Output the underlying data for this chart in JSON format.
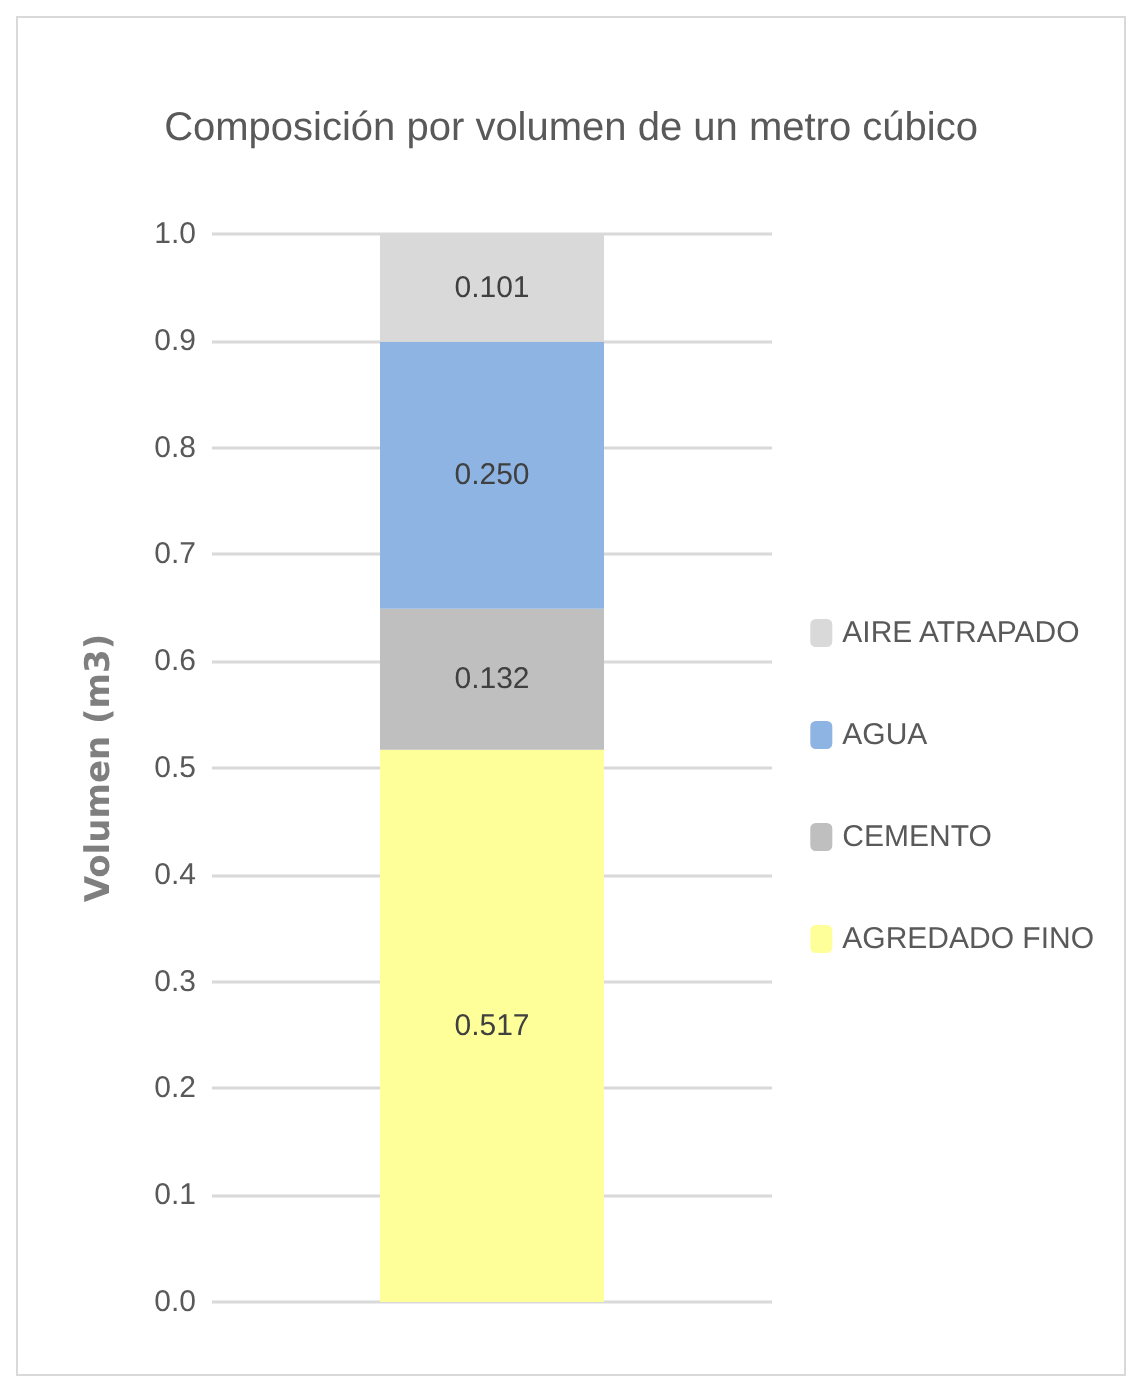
{
  "chart_data": {
    "type": "bar",
    "title": "Composición por volumen de un metro cúbico",
    "ylabel": "Volumen (m3)",
    "categories": [
      null
    ],
    "stacked": true,
    "series": [
      {
        "name": "AGREDADO FINO",
        "color": "#ffff99",
        "values": [
          0.517
        ],
        "value_labels": [
          "0.517"
        ]
      },
      {
        "name": "CEMENTO",
        "color": "#bfbfbf",
        "values": [
          0.132
        ],
        "value_labels": [
          "0.132"
        ]
      },
      {
        "name": "AGUA",
        "color": "#8eb4e3",
        "values": [
          0.25
        ],
        "value_labels": [
          "0.250"
        ]
      },
      {
        "name": "AIRE ATRAPADO",
        "color": "#d9d9d9",
        "values": [
          0.101
        ],
        "value_labels": [
          "0.101"
        ]
      }
    ],
    "ylim": [
      0,
      1
    ],
    "yticks": [
      {
        "value": 0,
        "label": "0.0"
      },
      0.1,
      0.2,
      0.3,
      0.4,
      0.5,
      0.6,
      0.7,
      0.8,
      0.9,
      {
        "value": 1,
        "label": "1.0"
      }
    ],
    "grid": "y",
    "legend": "right"
  }
}
